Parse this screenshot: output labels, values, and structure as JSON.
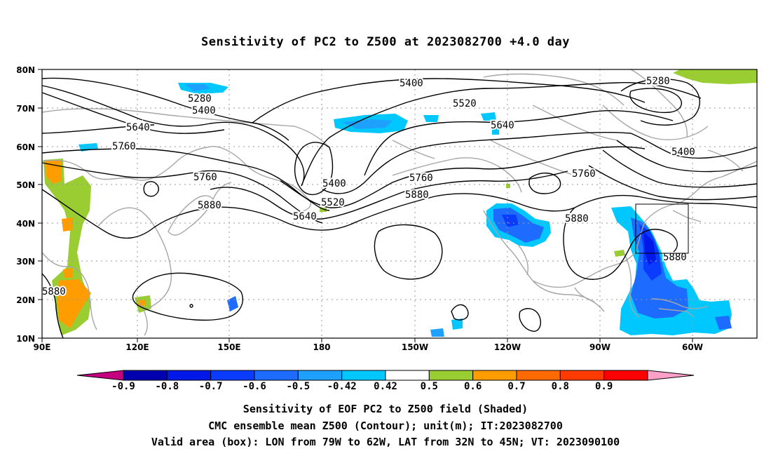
{
  "title": "Sensitivity of PC2 to Z500 at 2023082700 +4.0 day",
  "map": {
    "lat_labels": [
      "80N",
      "70N",
      "60N",
      "50N",
      "40N",
      "30N",
      "20N",
      "10N"
    ],
    "lon_labels": [
      "90E",
      "120E",
      "150E",
      "180",
      "150W",
      "120W",
      "90W",
      "60W"
    ],
    "contour_labels": [
      "5280",
      "5280",
      "5400",
      "5400",
      "5400",
      "5400",
      "5520",
      "5520",
      "5640",
      "5640",
      "5640",
      "5760",
      "5760",
      "5760",
      "5760",
      "5880",
      "5880",
      "5880",
      "5880",
      "5880"
    ],
    "valid_box": {
      "lon": [
        "79W",
        "62W"
      ],
      "lat": [
        "32N",
        "45N"
      ]
    },
    "colors": {
      "land": "#a6a6a6",
      "contour": "#000000",
      "grid": "#999999"
    }
  },
  "colorbar": {
    "labels": [
      "-0.9",
      "-0.8",
      "-0.7",
      "-0.6",
      "-0.5",
      "-0.42",
      "0.42",
      "0.5",
      "0.6",
      "0.7",
      "0.8",
      "0.9"
    ],
    "colors": [
      "#c4007f",
      "#0000b0",
      "#0018e8",
      "#0a3cff",
      "#1e6cff",
      "#1ea0ff",
      "#00c8ff",
      "#ffffff",
      "#9acd32",
      "#ff9d00",
      "#ff6a00",
      "#ff3b00",
      "#ff0000",
      "#ffa0c8"
    ]
  },
  "captions": {
    "line1": "Sensitivity of EOF PC2 to Z500 field (Shaded)",
    "line2": "CMC ensemble mean Z500 (Contour); unit(m); IT:2023082700",
    "line3": "Valid area (box): LON from 79W to 62W, LAT from 32N to 45N; VT: 2023090100"
  }
}
